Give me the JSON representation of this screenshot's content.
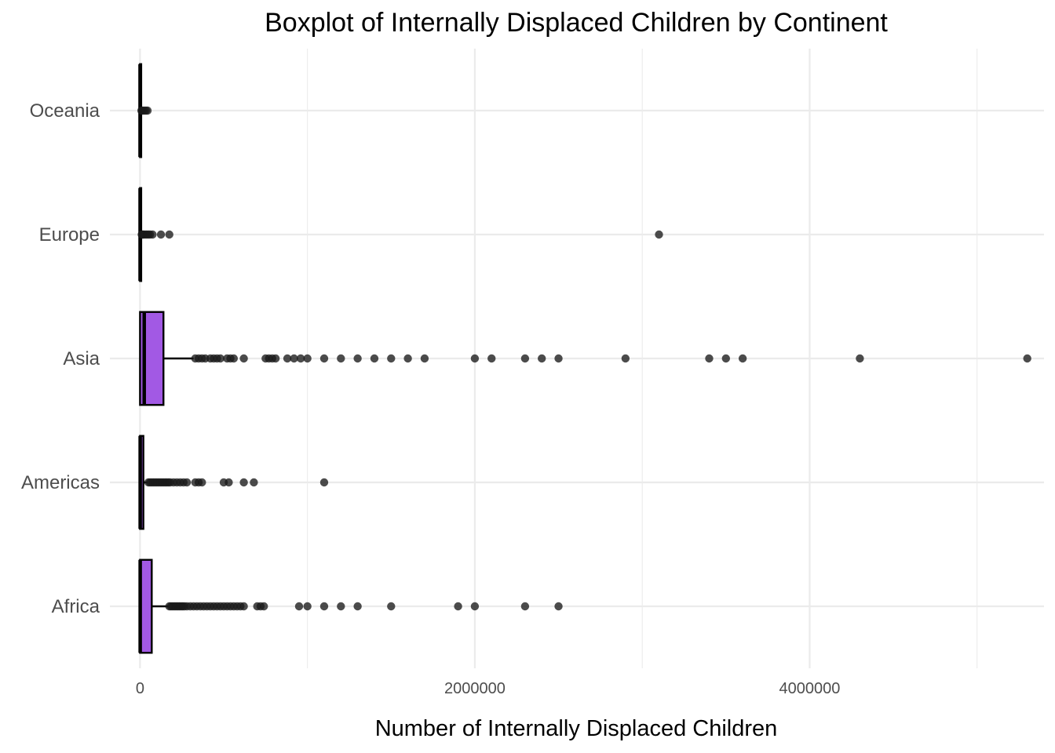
{
  "chart_data": {
    "type": "boxplot",
    "orientation": "horizontal",
    "title": "Boxplot of Internally Displaced Children by Continent",
    "xlabel": "Number of Internally Displaced Children",
    "ylabel": "",
    "xlim": [
      -180000,
      5400000
    ],
    "x_ticks": [
      0,
      2000000,
      4000000
    ],
    "x_tick_labels": [
      "0",
      "2000000",
      "4000000"
    ],
    "grid": true,
    "legend": "none",
    "box_fill": "#a259e4",
    "box_stroke": "#000000",
    "outlier_color": "#1a1a1a",
    "grid_color": "#ebebeb",
    "categories": [
      "Africa",
      "Americas",
      "Asia",
      "Europe",
      "Oceania"
    ],
    "boxes": [
      {
        "category": "Africa",
        "q1": 0,
        "median": 1000,
        "q3": 70000,
        "whisker_low": 0,
        "whisker_high": 170000,
        "outliers": [
          175000,
          185000,
          195000,
          205000,
          215000,
          225000,
          235000,
          245000,
          255000,
          265000,
          280000,
          300000,
          320000,
          340000,
          360000,
          380000,
          400000,
          420000,
          440000,
          460000,
          480000,
          500000,
          520000,
          540000,
          560000,
          580000,
          600000,
          620000,
          700000,
          720000,
          740000,
          950000,
          1000000,
          1100000,
          1200000,
          1300000,
          1500000,
          1900000,
          2000000,
          2300000,
          2500000
        ]
      },
      {
        "category": "Americas",
        "q1": 0,
        "median": 1000,
        "q3": 20000,
        "whisker_low": 0,
        "whisker_high": 45000,
        "outliers": [
          50000,
          60000,
          70000,
          80000,
          90000,
          100000,
          110000,
          120000,
          130000,
          140000,
          150000,
          160000,
          170000,
          180000,
          200000,
          220000,
          240000,
          260000,
          280000,
          330000,
          350000,
          370000,
          500000,
          530000,
          620000,
          680000,
          1100000
        ]
      },
      {
        "category": "Asia",
        "q1": 0,
        "median": 25000,
        "q3": 140000,
        "whisker_low": 0,
        "whisker_high": 320000,
        "outliers": [
          330000,
          350000,
          370000,
          390000,
          420000,
          440000,
          460000,
          480000,
          520000,
          540000,
          560000,
          620000,
          750000,
          770000,
          790000,
          810000,
          880000,
          920000,
          960000,
          1000000,
          1100000,
          1200000,
          1300000,
          1400000,
          1500000,
          1600000,
          1700000,
          2000000,
          2100000,
          2300000,
          2400000,
          2500000,
          2900000,
          3400000,
          3500000,
          3600000,
          4300000,
          5300000
        ]
      },
      {
        "category": "Europe",
        "q1": 0,
        "median": 500,
        "q3": 3000,
        "whisker_low": 0,
        "whisker_high": 8000,
        "outliers": [
          10000,
          15000,
          20000,
          30000,
          40000,
          50000,
          60000,
          75000,
          125000,
          175000,
          3100000
        ]
      },
      {
        "category": "Oceania",
        "q1": 0,
        "median": 300,
        "q3": 2000,
        "whisker_low": 0,
        "whisker_high": 5000,
        "outliers": [
          8000,
          15000,
          25000,
          35000,
          45000
        ]
      }
    ]
  }
}
